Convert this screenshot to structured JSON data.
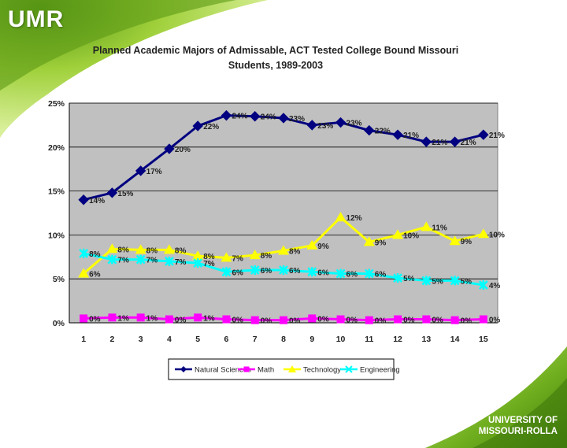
{
  "brand": {
    "logo": "UMR"
  },
  "footer": {
    "line1": "UNIVERSITY OF",
    "line2": "MISSOURI-ROLLA"
  },
  "colors": {
    "background_green": "#7ec02a",
    "plot_bg": "#c0c0c0"
  },
  "chart_data": {
    "type": "line",
    "title_line1": "Planned Academic Majors of Admissable, ACT Tested College Bound Missouri",
    "title_line2": "Students, 1989-2003",
    "xlabel": "",
    "ylabel": "",
    "categories": [
      "1",
      "2",
      "3",
      "4",
      "5",
      "6",
      "7",
      "8",
      "9",
      "10",
      "11",
      "12",
      "13",
      "14",
      "15"
    ],
    "ylim": [
      0,
      25
    ],
    "yticks": [
      "0%",
      "5%",
      "10%",
      "15%",
      "20%",
      "25%"
    ],
    "grid": true,
    "legend_position": "bottom",
    "series": [
      {
        "name": "Natural Sciences",
        "color": "#000080",
        "marker": "diamond",
        "values": [
          14,
          14.8,
          17.3,
          19.8,
          22.4,
          23.6,
          23.5,
          23.3,
          22.5,
          22.8,
          21.9,
          21.4,
          20.6,
          20.6,
          21.4
        ],
        "labels": [
          "14%",
          "15%",
          "17%",
          "20%",
          "22%",
          "24%",
          "24%",
          "23%",
          "23%",
          "23%",
          "22%",
          "21%",
          "21%",
          "21%",
          "21%"
        ]
      },
      {
        "name": "Math",
        "color": "#ff00ff",
        "marker": "square",
        "values": [
          0.5,
          0.6,
          0.6,
          0.4,
          0.6,
          0.4,
          0.3,
          0.3,
          0.5,
          0.4,
          0.3,
          0.4,
          0.4,
          0.3,
          0.4
        ],
        "labels": [
          "0%",
          "1%",
          "1%",
          "0%",
          "1%",
          "0%",
          "0%",
          "0%",
          "0%",
          "0%",
          "0%",
          "0%",
          "0%",
          "0%",
          "0%"
        ]
      },
      {
        "name": "Technology",
        "color": "#ffff00",
        "marker": "triangle",
        "values": [
          5.6,
          8.4,
          8.3,
          8.3,
          7.6,
          7.4,
          7.7,
          8.2,
          8.8,
          12,
          9.2,
          10,
          10.9,
          9.3,
          10.1
        ],
        "labels": [
          "6%",
          "8%",
          "8%",
          "8%",
          "8%",
          "7%",
          "8%",
          "8%",
          "9%",
          "12%",
          "9%",
          "10%",
          "11%",
          "9%",
          "10%"
        ]
      },
      {
        "name": "Engineering",
        "color": "#00ffff",
        "marker": "x",
        "values": [
          7.9,
          7.2,
          7.2,
          7.0,
          6.8,
          5.8,
          6.0,
          6.0,
          5.8,
          5.6,
          5.6,
          5.1,
          4.8,
          4.8,
          4.3
        ],
        "labels": [
          "8%",
          "7%",
          "7%",
          "7%",
          "7%",
          "6%",
          "6%",
          "6%",
          "6%",
          "6%",
          "6%",
          "5%",
          "5%",
          "5%",
          "4%"
        ]
      }
    ]
  }
}
